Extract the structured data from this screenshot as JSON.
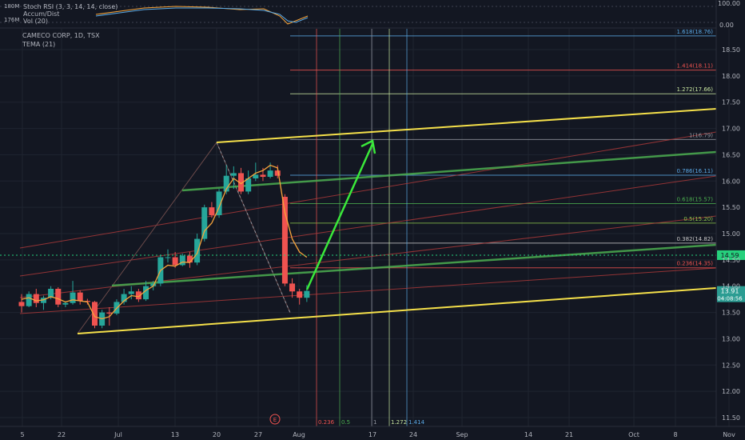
{
  "header": {
    "symbol": "CAMECO CORP, 1D, TSX",
    "tema": "TEMA (21)",
    "indicator_1": "Stoch RSI (3, 3, 14, 14, close)",
    "indicator_2": "Accum/Dist",
    "indicator_3": "Vol (20)",
    "vol_tick_top": "180M",
    "vol_tick_bottom": "176M",
    "rsi_tick_top": "100.00",
    "rsi_tick_bottom": "0.00"
  },
  "price_badges": {
    "last_price": "14.59",
    "current": "13.91",
    "countdown": "04:08:56"
  },
  "events": {
    "marker": "E"
  },
  "colors": {
    "background": "#131722",
    "up": "#26a69a",
    "down": "#ef5350",
    "tema": "#f7a43b",
    "channel": "#f5e04a",
    "mid_channel": "#4caf50",
    "arrow": "#3ae83a",
    "grid": "#1f2430"
  },
  "chart_data": {
    "type": "candlestick",
    "title": "CAMECO CORP, 1D, TSX",
    "y_ticks": [
      "18.50",
      "18.00",
      "17.50",
      "17.00",
      "16.50",
      "16.00",
      "15.50",
      "15.00",
      "14.50",
      "14.00",
      "13.50",
      "13.00",
      "12.50",
      "12.00",
      "11.50"
    ],
    "ylim": [
      11.35,
      19.0
    ],
    "x_tick_labels": [
      "5",
      "22",
      "Jul",
      "13",
      "20",
      "27",
      "Aug",
      "17",
      "24",
      "Sep",
      "14",
      "21",
      "Oct",
      "8",
      "Nov"
    ],
    "grid": true,
    "candles": [
      {
        "o": 13.7,
        "h": 13.85,
        "l": 13.5,
        "c": 13.62
      },
      {
        "o": 13.62,
        "h": 13.9,
        "l": 13.6,
        "c": 13.85
      },
      {
        "o": 13.85,
        "h": 13.95,
        "l": 13.6,
        "c": 13.68
      },
      {
        "o": 13.68,
        "h": 13.82,
        "l": 13.55,
        "c": 13.78
      },
      {
        "o": 13.78,
        "h": 14.0,
        "l": 13.75,
        "c": 13.95
      },
      {
        "o": 13.95,
        "h": 13.98,
        "l": 13.6,
        "c": 13.65
      },
      {
        "o": 13.65,
        "h": 13.7,
        "l": 13.6,
        "c": 13.68
      },
      {
        "o": 13.68,
        "h": 14.1,
        "l": 13.65,
        "c": 13.88
      },
      {
        "o": 13.88,
        "h": 13.92,
        "l": 13.65,
        "c": 13.72
      },
      {
        "o": 13.72,
        "h": 13.76,
        "l": 13.65,
        "c": 13.7
      },
      {
        "o": 13.7,
        "h": 13.72,
        "l": 13.2,
        "c": 13.25
      },
      {
        "o": 13.25,
        "h": 13.55,
        "l": 13.2,
        "c": 13.5
      },
      {
        "o": 13.5,
        "h": 13.6,
        "l": 13.25,
        "c": 13.48
      },
      {
        "o": 13.48,
        "h": 13.75,
        "l": 13.45,
        "c": 13.7
      },
      {
        "o": 13.7,
        "h": 13.95,
        "l": 13.65,
        "c": 13.85
      },
      {
        "o": 13.85,
        "h": 14.0,
        "l": 13.75,
        "c": 13.9
      },
      {
        "o": 13.9,
        "h": 13.95,
        "l": 13.7,
        "c": 13.75
      },
      {
        "o": 13.75,
        "h": 14.1,
        "l": 13.72,
        "c": 14.0
      },
      {
        "o": 14.0,
        "h": 14.1,
        "l": 13.92,
        "c": 14.05
      },
      {
        "o": 14.05,
        "h": 14.6,
        "l": 14.0,
        "c": 14.55
      },
      {
        "o": 14.55,
        "h": 14.7,
        "l": 14.45,
        "c": 14.55
      },
      {
        "o": 14.55,
        "h": 14.65,
        "l": 14.35,
        "c": 14.4
      },
      {
        "o": 14.4,
        "h": 14.62,
        "l": 14.38,
        "c": 14.58
      },
      {
        "o": 14.58,
        "h": 14.65,
        "l": 14.35,
        "c": 14.45
      },
      {
        "o": 14.45,
        "h": 15.0,
        "l": 14.4,
        "c": 14.9
      },
      {
        "o": 14.9,
        "h": 15.55,
        "l": 14.85,
        "c": 15.5
      },
      {
        "o": 15.5,
        "h": 15.6,
        "l": 15.3,
        "c": 15.35
      },
      {
        "o": 15.35,
        "h": 15.85,
        "l": 15.3,
        "c": 15.8
      },
      {
        "o": 15.8,
        "h": 16.3,
        "l": 15.75,
        "c": 16.1
      },
      {
        "o": 16.1,
        "h": 16.28,
        "l": 15.85,
        "c": 16.15
      },
      {
        "o": 16.15,
        "h": 16.25,
        "l": 15.75,
        "c": 15.8
      },
      {
        "o": 15.8,
        "h": 16.2,
        "l": 15.75,
        "c": 16.05
      },
      {
        "o": 16.05,
        "h": 16.35,
        "l": 16.0,
        "c": 16.12
      },
      {
        "o": 16.12,
        "h": 16.25,
        "l": 16.0,
        "c": 16.08
      },
      {
        "o": 16.08,
        "h": 16.35,
        "l": 16.05,
        "c": 16.2
      },
      {
        "o": 16.2,
        "h": 16.3,
        "l": 16.05,
        "c": 16.1
      },
      {
        "o": 15.7,
        "h": 15.75,
        "l": 14.0,
        "c": 14.05
      },
      {
        "o": 14.05,
        "h": 14.15,
        "l": 13.78,
        "c": 13.9
      },
      {
        "o": 13.9,
        "h": 13.95,
        "l": 13.65,
        "c": 13.78
      },
      {
        "o": 13.78,
        "h": 14.02,
        "l": 13.7,
        "c": 13.91
      }
    ],
    "tema": [
      13.75,
      13.78,
      13.72,
      13.74,
      13.8,
      13.76,
      13.7,
      13.74,
      13.72,
      13.7,
      13.42,
      13.38,
      13.42,
      13.58,
      13.72,
      13.82,
      13.8,
      13.92,
      14.0,
      14.3,
      14.4,
      14.38,
      14.46,
      14.45,
      14.62,
      15.05,
      15.2,
      15.5,
      15.85,
      16.05,
      15.95,
      16.05,
      16.15,
      16.2,
      16.3,
      16.25,
      15.4,
      14.9,
      14.65,
      14.55
    ],
    "fib_levels": [
      {
        "ratio": "0.236",
        "value": 14.35,
        "label": "0.236(14.35)",
        "color": "#ef5350"
      },
      {
        "ratio": "0.382",
        "value": 14.82,
        "label": "0.382(14.82)",
        "color": "#c8c8c8"
      },
      {
        "ratio": "0.5",
        "value": 15.2,
        "label": "0.5(15.20)",
        "color": "#8bc34a"
      },
      {
        "ratio": "0.618",
        "value": 15.57,
        "label": "0.618(15.57)",
        "color": "#4caf50"
      },
      {
        "ratio": "0.786",
        "value": 16.11,
        "label": "0.786(16.11)",
        "color": "#5aa9e6"
      },
      {
        "ratio": "1",
        "value": 16.79,
        "label": "1(16.79)",
        "color": "#9598a1"
      },
      {
        "ratio": "1.272",
        "value": 17.66,
        "label": "1.272(17.66)",
        "color": "#c8e6a0"
      },
      {
        "ratio": "1.414",
        "value": 18.11,
        "label": "1.414(18.11)",
        "color": "#ef5350"
      },
      {
        "ratio": "1.618",
        "value": 18.76,
        "label": "1.618(18.76)",
        "color": "#5aa9e6"
      }
    ],
    "fib_time_labels": [
      {
        "text": "0.236",
        "color": "#ef5350"
      },
      {
        "text": "0.5",
        "color": "#4caf50"
      },
      {
        "text": "1",
        "color": "#9598a1"
      },
      {
        "text": "1.272",
        "color": "#c8e6a0"
      },
      {
        "text": "1.414",
        "color": "#5aa9e6"
      }
    ],
    "last_price_line": 14.59
  }
}
